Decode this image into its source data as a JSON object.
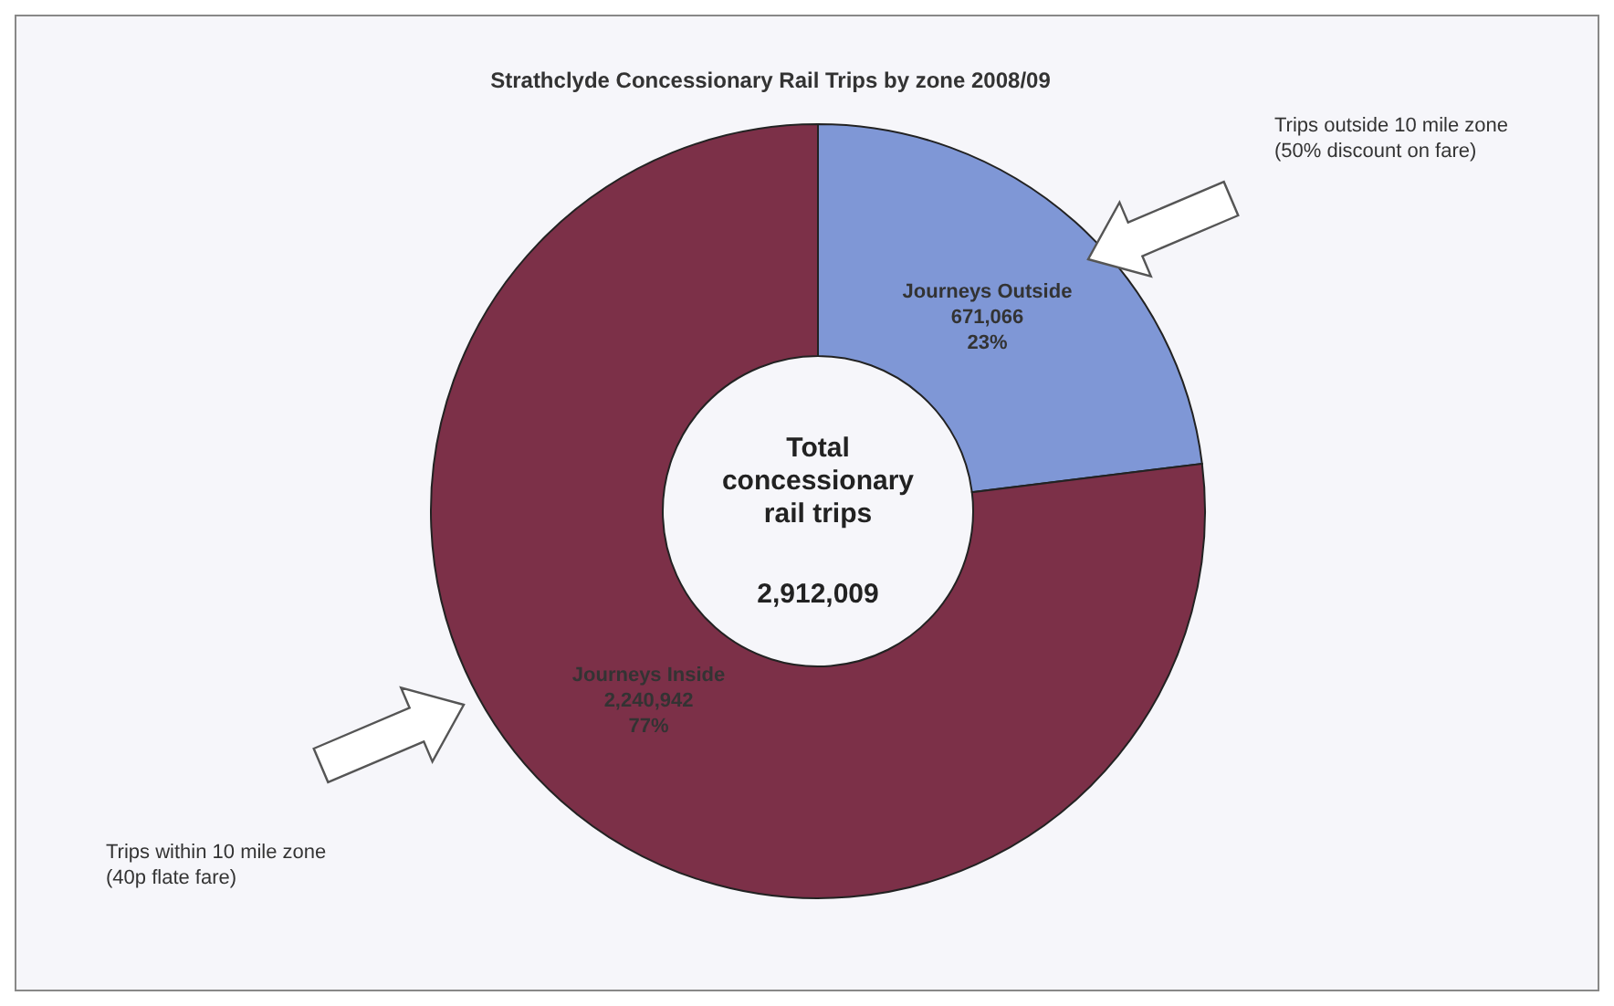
{
  "chart_data": {
    "type": "donut",
    "title": "Strathclyde Concessionary Rail Trips by zone 2008/09",
    "categories": [
      "Journeys Outside",
      "Journeys Inside"
    ],
    "values": [
      671066,
      2240942
    ],
    "value_labels": [
      "671,066\n23%",
      "2,240,942\n77%"
    ],
    "colors": [
      "#7f97d6",
      "#7c3048"
    ],
    "annotations": [
      "Total\nconcessionary\nrail trips",
      "2,912,009",
      "Trips outside 10 mile zone\n(50% discount on fare)",
      "Trips within 10 mile zone\n(40p flate fare)"
    ]
  }
}
